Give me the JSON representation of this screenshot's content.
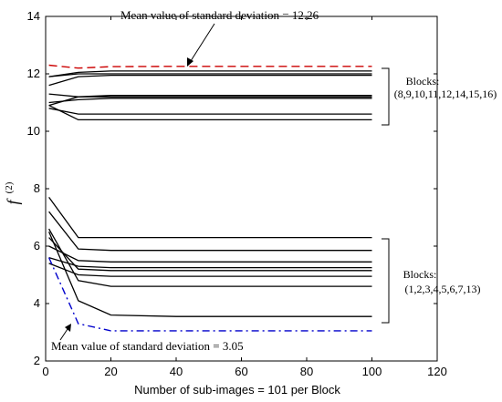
{
  "chart_data": {
    "type": "line",
    "xlabel": "Number of sub-images = 101 per Block",
    "ylabel": "f",
    "ylabel_superscript": "(2)",
    "xlim": [
      0,
      120
    ],
    "ylim": [
      2,
      14
    ],
    "xticks": [
      "0",
      "20",
      "40",
      "60",
      "80",
      "100",
      "120"
    ],
    "yticks": [
      "2",
      "4",
      "6",
      "8",
      "10",
      "12",
      "14"
    ],
    "grid": false,
    "series_color": "#000000",
    "upper_group_series": [
      {
        "values": [
          11.9,
          12.05,
          12.1,
          12.1,
          12.1,
          12.1
        ]
      },
      {
        "values": [
          11.6,
          11.9,
          11.95,
          11.95,
          11.95,
          11.95
        ]
      },
      {
        "values": [
          10.9,
          11.2,
          11.25,
          11.25,
          11.25,
          11.25
        ]
      },
      {
        "values": [
          11.3,
          11.2,
          11.2,
          11.2,
          11.2,
          11.2
        ]
      },
      {
        "values": [
          11.0,
          11.1,
          11.15,
          11.15,
          11.15,
          11.15
        ]
      },
      {
        "values": [
          10.8,
          10.6,
          10.6,
          10.6,
          10.6,
          10.6
        ]
      },
      {
        "values": [
          10.9,
          10.4,
          10.4,
          10.4,
          10.4,
          10.4
        ]
      },
      {
        "values": [
          11.9,
          12.0,
          12.0,
          12.0,
          12.0,
          12.0
        ]
      }
    ],
    "upper_mean_std": {
      "value": 12.26,
      "color": "#cc0000",
      "values": [
        12.3,
        12.2,
        12.25,
        12.26,
        12.26,
        12.26
      ]
    },
    "lower_group_series": [
      {
        "values": [
          7.7,
          6.3,
          6.3,
          6.3,
          6.3,
          6.3
        ]
      },
      {
        "values": [
          7.2,
          5.9,
          5.85,
          5.85,
          5.85,
          5.85
        ]
      },
      {
        "values": [
          6.0,
          5.5,
          5.45,
          5.45,
          5.45,
          5.45
        ]
      },
      {
        "values": [
          6.3,
          5.2,
          5.15,
          5.15,
          5.15,
          5.15
        ]
      },
      {
        "values": [
          5.4,
          5.0,
          4.95,
          4.95,
          4.95,
          4.95
        ]
      },
      {
        "values": [
          6.6,
          4.8,
          4.6,
          4.6,
          4.6,
          4.6
        ]
      },
      {
        "values": [
          6.5,
          4.1,
          3.6,
          3.55,
          3.55,
          3.55
        ]
      },
      {
        "values": [
          5.6,
          5.3,
          5.25,
          5.25,
          5.25,
          5.25
        ]
      }
    ],
    "sample_x": [
      1,
      10,
      20,
      40,
      70,
      100
    ],
    "lower_mean_std": {
      "value": 3.05,
      "color": "#0000cc",
      "values": [
        5.6,
        3.3,
        3.05,
        3.05,
        3.05,
        3.05
      ]
    },
    "annotations": {
      "upper": "Mean value of standard deviation = 12.26",
      "lower": "Mean value of standard deviation = 3.05"
    },
    "group_labels": {
      "upper_title": "Blocks:",
      "upper_members": "(8,9,10,11,12,14,15,16)",
      "lower_title": "Blocks:",
      "lower_members": "(1,2,3,4,5,6,7,13)"
    }
  }
}
